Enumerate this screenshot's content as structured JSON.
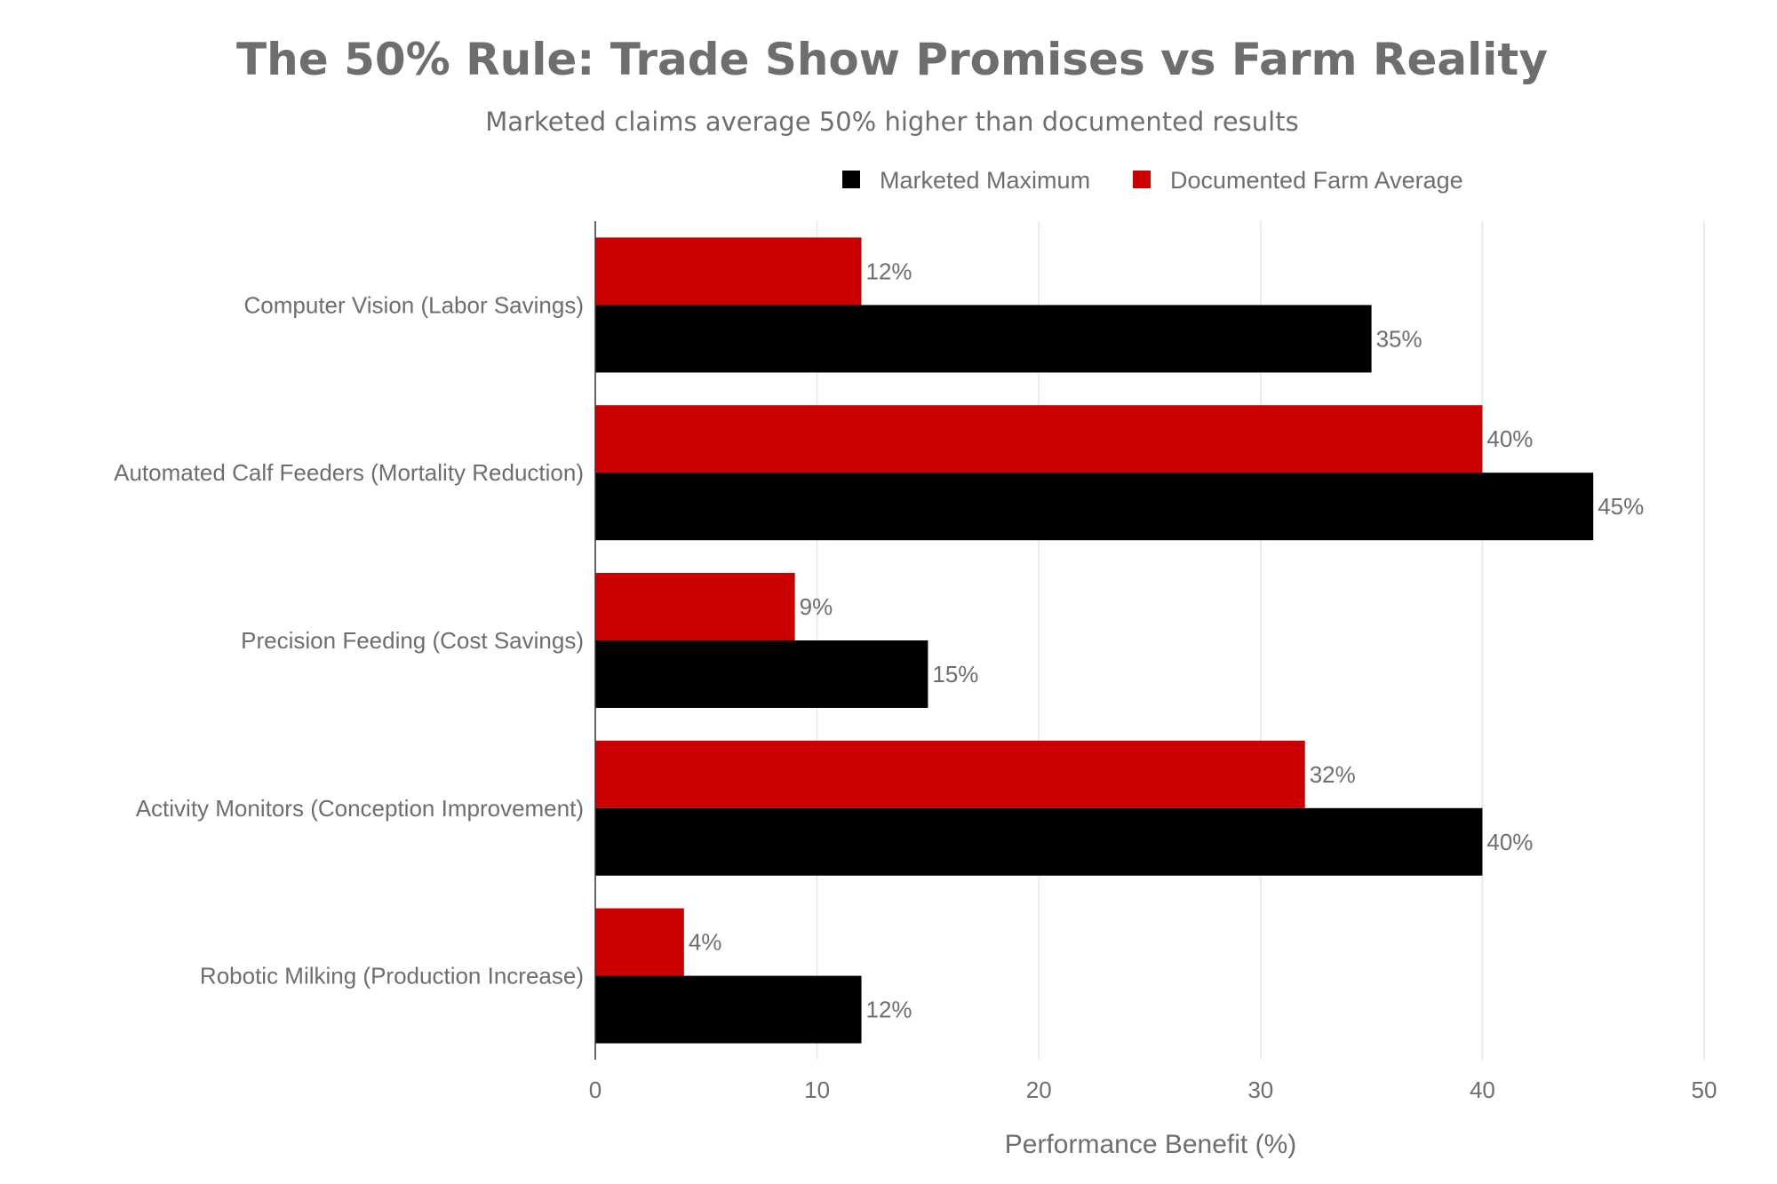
{
  "chart_data": {
    "type": "bar",
    "orientation": "horizontal",
    "title": "The 50% Rule: Trade Show Promises vs Farm Reality",
    "subtitle": "Marketed claims average 50% higher than documented results",
    "xlabel": "Performance Benefit (%)",
    "ylabel": "",
    "xlim": [
      0,
      50
    ],
    "xticks": [
      0,
      10,
      20,
      30,
      40,
      50
    ],
    "grid": true,
    "legend_position": "top-right",
    "categories": [
      "Computer Vision (Labor Savings)",
      "Automated Calf Feeders (Mortality Reduction)",
      "Precision Feeding (Cost Savings)",
      "Activity Monitors (Conception Improvement)",
      "Robotic Milking (Production Increase)"
    ],
    "series": [
      {
        "name": "Marketed Maximum",
        "color": "#000000",
        "values": [
          35,
          45,
          15,
          40,
          12
        ],
        "labels": [
          "35%",
          "45%",
          "15%",
          "40%",
          "12%"
        ]
      },
      {
        "name": "Documented Farm Average",
        "color": "#cc0000",
        "values": [
          12,
          40,
          9,
          32,
          4
        ],
        "labels": [
          "12%",
          "40%",
          "9%",
          "32%",
          "4%"
        ]
      }
    ]
  }
}
